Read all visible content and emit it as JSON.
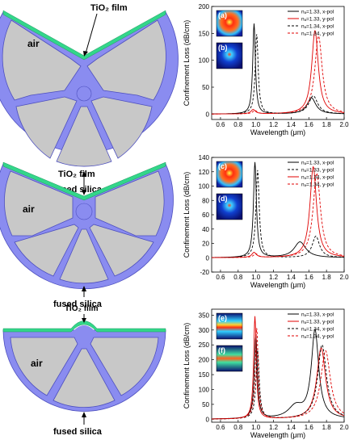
{
  "structures": [
    {
      "film_label": "TiO₂ film",
      "core_label": "air",
      "cladding_label": "fused silica"
    },
    {
      "film_label": "TiO₂ film",
      "core_label": "air",
      "cladding_label": "fused silica"
    },
    {
      "film_label": "TiO₂ film",
      "core_label": "air",
      "cladding_label": "fused silica"
    }
  ],
  "colors": {
    "silica": "#8a8cf0",
    "air_hole": "#c8c8c8",
    "film": "#33d68a",
    "series_black": "#000000",
    "series_red": "#e00000"
  },
  "chart_data": [
    {
      "type": "line",
      "xlabel": "Wavelength (μm)",
      "ylabel": "Confinement Loss (dB/cm)",
      "xlim": [
        0.5,
        2.0
      ],
      "ylim": [
        -10,
        200
      ],
      "xticks": [
        "0.6",
        "0.8",
        "1.0",
        "1.2",
        "1.4",
        "1.6",
        "1.8",
        "2.0"
      ],
      "yticks": [
        "0",
        "50",
        "100",
        "150",
        "200"
      ],
      "ytick_values": [
        0,
        50,
        100,
        150,
        200
      ],
      "panel_labels": [
        "(a)",
        "(b)"
      ],
      "legend_position": "top-right",
      "series": [
        {
          "name": "nₐ=1.33, x-pol",
          "color": "#000000",
          "dash": "solid",
          "peaks": [
            [
              0.98,
              168,
              0.018
            ],
            [
              1.63,
              30,
              0.06
            ]
          ]
        },
        {
          "name": "nₐ=1.33, y-pol",
          "color": "#e00000",
          "dash": "solid",
          "peaks": [
            [
              0.97,
              8,
              0.03
            ],
            [
              1.67,
              155,
              0.045
            ]
          ]
        },
        {
          "name": "nₐ=1.34, x-pol",
          "color": "#000000",
          "dash": "dash",
          "peaks": [
            [
              1.01,
              148,
              0.02
            ],
            [
              1.65,
              34,
              0.06
            ]
          ]
        },
        {
          "name": "nₐ=1.34, y-pol",
          "color": "#e00000",
          "dash": "dash",
          "peaks": [
            [
              0.99,
              6,
              0.03
            ],
            [
              1.71,
              145,
              0.05
            ]
          ]
        }
      ]
    },
    {
      "type": "line",
      "xlabel": "Wavelength (μm)",
      "ylabel": "Confinement Loss (dB/cm)",
      "xlim": [
        0.5,
        2.0
      ],
      "ylim": [
        -20,
        140
      ],
      "xticks": [
        "0.6",
        "0.8",
        "1.0",
        "1.2",
        "1.4",
        "1.6",
        "1.8",
        "2.0"
      ],
      "yticks": [
        "-20",
        "0",
        "20",
        "40",
        "60",
        "80",
        "100",
        "120",
        "140"
      ],
      "ytick_values": [
        -20,
        0,
        20,
        40,
        60,
        80,
        100,
        120,
        140
      ],
      "panel_labels": [
        "(c)",
        "(d)"
      ],
      "legend_position": "top-right",
      "series": [
        {
          "name": "nₐ=1.33, x-pol",
          "color": "#000000",
          "dash": "solid",
          "peaks": [
            [
              0.99,
              133,
              0.02
            ],
            [
              1.5,
              22,
              0.08
            ]
          ]
        },
        {
          "name": "nₐ=1.33, y-pol",
          "color": "#000000",
          "dash": "dash",
          "peaks": [
            [
              1.02,
              122,
              0.022
            ],
            [
              1.68,
              30,
              0.05
            ]
          ]
        },
        {
          "name": "nₐ=1.34, x-pol",
          "color": "#e00000",
          "dash": "solid",
          "peaks": [
            [
              0.98,
              7,
              0.03
            ],
            [
              1.65,
              127,
              0.045
            ]
          ]
        },
        {
          "name": "nₐ=1.34, y-pol",
          "color": "#e00000",
          "dash": "dash",
          "peaks": [
            [
              1.0,
              5,
              0.03
            ],
            [
              1.69,
              118,
              0.05
            ]
          ]
        }
      ]
    },
    {
      "type": "line",
      "xlabel": "Wavelength (μm)",
      "ylabel": "Confinement Loss (dB/cm)",
      "xlim": [
        0.5,
        2.0
      ],
      "ylim": [
        -10,
        370
      ],
      "xticks": [
        "0.6",
        "0.8",
        "1.0",
        "1.2",
        "1.4",
        "1.6",
        "1.8",
        "2.0"
      ],
      "yticks": [
        "0",
        "50",
        "100",
        "150",
        "200",
        "250",
        "300",
        "350"
      ],
      "ytick_values": [
        0,
        50,
        100,
        150,
        200,
        250,
        300,
        350
      ],
      "panel_labels": [
        "(e)",
        "(f)"
      ],
      "legend_position": "top-right",
      "series": [
        {
          "name": "nₐ=1.33, x-pol",
          "color": "#000000",
          "dash": "solid",
          "peaks": [
            [
              1.0,
              280,
              0.02
            ],
            [
              1.67,
              295,
              0.05
            ],
            [
              1.45,
              40,
              0.1
            ]
          ]
        },
        {
          "name": "nₐ=1.33, y-pol",
          "color": "#e00000",
          "dash": "solid",
          "peaks": [
            [
              0.99,
              345,
              0.018
            ],
            [
              1.74,
              240,
              0.06
            ]
          ]
        },
        {
          "name": "nₐ=1.34, x-pol",
          "color": "#000000",
          "dash": "dash",
          "peaks": [
            [
              1.02,
              230,
              0.022
            ],
            [
              1.75,
              250,
              0.06
            ]
          ]
        },
        {
          "name": "nₐ=1.34, y-pol",
          "color": "#e00000",
          "dash": "dash",
          "peaks": [
            [
              1.01,
              305,
              0.02
            ],
            [
              1.79,
              230,
              0.065
            ]
          ]
        }
      ]
    }
  ]
}
